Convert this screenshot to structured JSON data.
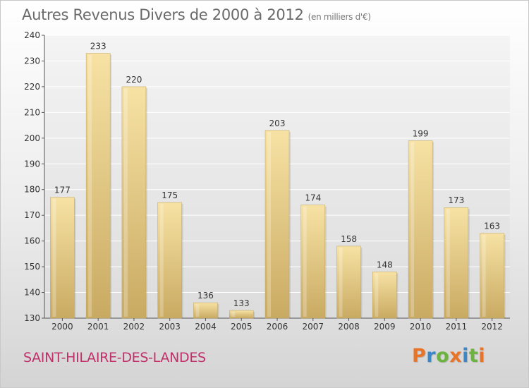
{
  "header": {
    "title": "Autres Revenus Divers de 2000 à 2012",
    "unit": "(en milliers d'€)"
  },
  "footer": {
    "commune": "SAINT-HILAIRE-DES-LANDES",
    "brand": [
      "P",
      "r",
      "o",
      "x",
      "i",
      "t",
      "i"
    ],
    "brand_colors": [
      "#e8742a",
      "#3b86c6",
      "#6cb33f",
      "#e8742a",
      "#3b86c6",
      "#6cb33f",
      "#e8742a"
    ]
  },
  "chart_data": {
    "type": "bar",
    "title": "Autres Revenus Divers de 2000 à 2012",
    "subtitle": "(en milliers d'€)",
    "xlabel": "",
    "ylabel": "",
    "categories": [
      "2000",
      "2001",
      "2002",
      "2003",
      "2004",
      "2005",
      "2006",
      "2007",
      "2008",
      "2009",
      "2010",
      "2011",
      "2012"
    ],
    "values": [
      177,
      233,
      220,
      175,
      136,
      133,
      203,
      174,
      158,
      148,
      199,
      173,
      163
    ],
    "ylim": [
      130,
      240
    ],
    "yticks": [
      130,
      140,
      150,
      160,
      170,
      180,
      190,
      200,
      210,
      220,
      230,
      240
    ],
    "grid": true,
    "legend": "none",
    "bar_color": "#e8d08a"
  }
}
